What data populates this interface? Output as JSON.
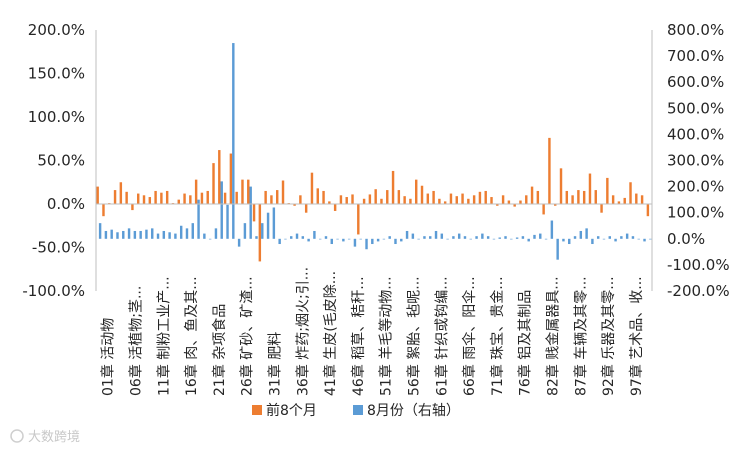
{
  "chart_data": {
    "type": "bar",
    "categories": [
      "01章",
      "02章",
      "03章",
      "04章",
      "05章",
      "06章",
      "07章",
      "08章",
      "09章",
      "10章",
      "11章",
      "12章",
      "13章",
      "14章",
      "15章",
      "16章",
      "17章",
      "18章",
      "19章",
      "20章",
      "21章",
      "22章",
      "23章",
      "24章",
      "25章",
      "26章",
      "27章",
      "28章",
      "29章",
      "30章",
      "31章",
      "32章",
      "33章",
      "34章",
      "35章",
      "36章",
      "37章",
      "38章",
      "39章",
      "40章",
      "41章",
      "42章",
      "43章",
      "44章",
      "45章",
      "46章",
      "47章",
      "48章",
      "49章",
      "50章",
      "51章",
      "52章",
      "53章",
      "54章",
      "55章",
      "56章",
      "57章",
      "58章",
      "59章",
      "60章",
      "61章",
      "62章",
      "63章",
      "64章",
      "65章",
      "66章",
      "67章",
      "68章",
      "69章",
      "70章",
      "71章",
      "72章",
      "73章",
      "74章",
      "75章",
      "76章",
      "78章",
      "79章",
      "80章",
      "81章",
      "82章",
      "83章",
      "84章",
      "85章",
      "86章",
      "87章",
      "88章",
      "89章",
      "90章",
      "91章",
      "92章",
      "93章",
      "94章",
      "95章",
      "96章",
      "97章"
    ],
    "category_labels": [
      "01章  活动物",
      "06章  活植物;茎...",
      "11章  制粉工业产...",
      "16章  肉、鱼及其...",
      "21章  杂项食品",
      "26章  矿砂、矿渣...",
      "31章  肥料",
      "36章  炸药;烟火;引...",
      "41章  生皮(毛皮除...",
      "46章  稻草、秸秆...",
      "51章  羊毛等动物...",
      "56章  絮胎、毡呢...",
      "61章  针织或钩编...",
      "66章  雨伞、阳伞...",
      "71章  珠宝、贵金...",
      "76章  铝及其制品",
      "82章  贱金属器具...",
      "87章  车辆及其零...",
      "92章  乐器及其零...",
      "97章  艺术品、收..."
    ],
    "series": [
      {
        "name": "前8个月",
        "axis": "left",
        "color": "#ED7D31",
        "values": [
          20,
          -14,
          1,
          16,
          25,
          14,
          -7,
          12,
          10,
          8,
          15,
          13,
          15,
          1,
          5,
          12,
          10,
          28,
          13,
          15,
          47,
          62,
          13,
          58,
          14,
          28,
          28,
          -20,
          -66,
          15,
          10,
          16,
          27,
          1,
          -2,
          10,
          -10,
          36,
          18,
          15,
          3,
          -8,
          10,
          8,
          11,
          -35,
          6,
          11,
          17,
          6,
          16,
          38,
          16,
          9,
          6,
          28,
          21,
          12,
          15,
          6,
          3,
          12,
          9,
          12,
          6,
          10,
          14,
          15,
          8,
          -2,
          10,
          4,
          -3,
          4,
          10,
          20,
          15,
          -12,
          76,
          -2,
          41,
          15,
          10,
          16,
          15,
          35,
          16,
          -10,
          30,
          10,
          3,
          7,
          25,
          12,
          10,
          -14
        ]
      },
      {
        "name": "8月份（右轴）",
        "axis": "right",
        "color": "#5B9BD5",
        "values": [
          60,
          30,
          35,
          25,
          30,
          40,
          30,
          30,
          35,
          40,
          20,
          30,
          25,
          20,
          50,
          40,
          60,
          150,
          20,
          0,
          40,
          220,
          130,
          750,
          -30,
          60,
          200,
          10,
          60,
          100,
          120,
          -20,
          0,
          10,
          20,
          10,
          -10,
          30,
          0,
          10,
          -20,
          0,
          -10,
          0,
          -30,
          0,
          -40,
          -20,
          -10,
          0,
          10,
          -20,
          -10,
          30,
          20,
          0,
          10,
          10,
          30,
          20,
          0,
          10,
          20,
          10,
          0,
          10,
          20,
          10,
          0,
          5,
          10,
          0,
          5,
          10,
          -10,
          15,
          20,
          0,
          70,
          -80,
          -10,
          -20,
          10,
          30,
          40,
          -20,
          10,
          0,
          10,
          -10,
          10,
          20,
          10,
          0,
          -10,
          0
        ]
      }
    ],
    "y_left": {
      "min": -100,
      "max": 200,
      "step": 50,
      "format": "percent"
    },
    "y_right": {
      "min": -200,
      "max": 800,
      "step": 100,
      "format": "percent"
    },
    "legend_position": "bottom",
    "gridlines": false
  },
  "watermark": "大数跨境"
}
